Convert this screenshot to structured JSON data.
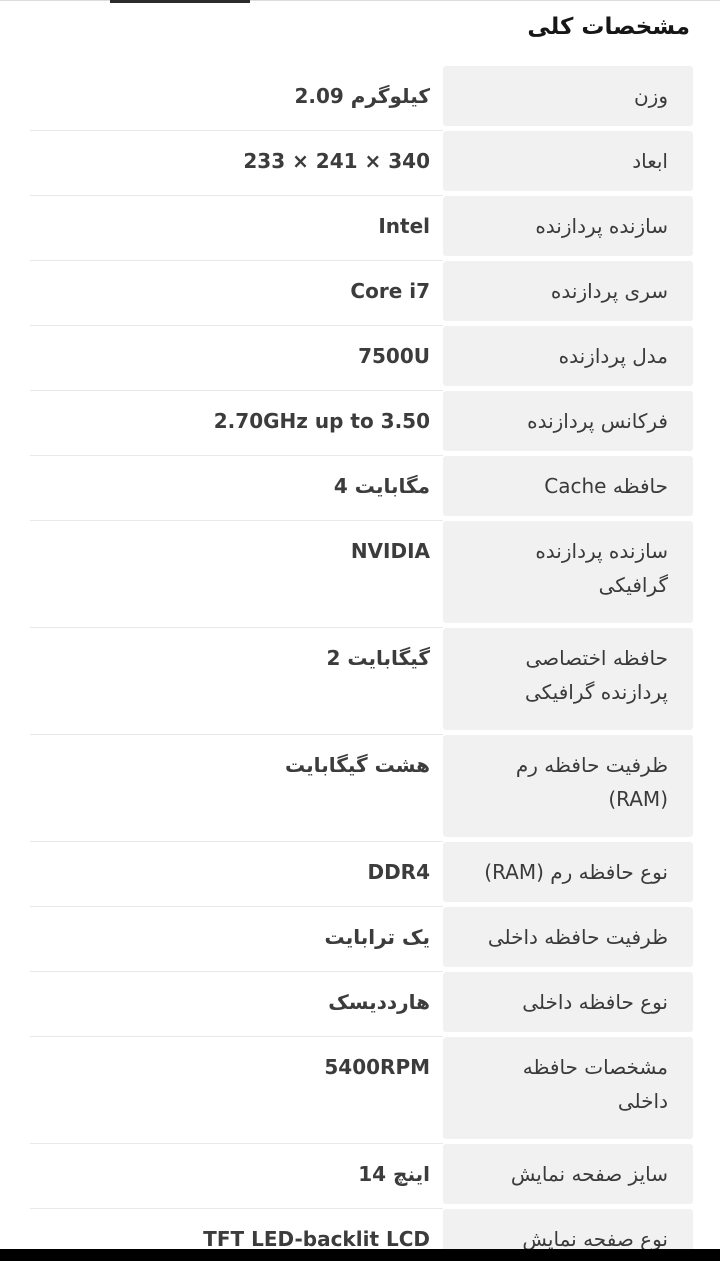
{
  "section": {
    "title": "مشخصات کلی"
  },
  "spec_table": {
    "rows": [
      {
        "label": "وزن",
        "value": "2.09 کیلوگرم",
        "lines": 1
      },
      {
        "label": "ابعاد",
        "value": "233 × 241 × 340",
        "lines": 1
      },
      {
        "label": "سازنده پردازنده",
        "value": "Intel",
        "lines": 1
      },
      {
        "label": "سری پردازنده",
        "value": "Core i7",
        "lines": 1
      },
      {
        "label": "مدل پردازنده",
        "value": "7500U",
        "lines": 1
      },
      {
        "label": "فرکانس پردازنده",
        "value": "2.70GHz up to 3.50",
        "lines": 1
      },
      {
        "label": "حافظه Cache",
        "value": "4 مگابایت",
        "lines": 1
      },
      {
        "label": "سازنده پردازنده\nگرافیکی",
        "value": "NVIDIA",
        "lines": 2
      },
      {
        "label": "حافظه اختصاصی\nپردازنده گرافیکی",
        "value": "2 گیگابایت",
        "lines": 2
      },
      {
        "label": "ظرفیت حافظه رم\n(RAM)",
        "value": "هشت گیگابایت",
        "lines": 2
      },
      {
        "label": "نوع حافظه رم (RAM)",
        "value": "DDR4",
        "lines": 1
      },
      {
        "label": "ظرفیت حافظه داخلی",
        "value": "یک ترابایت",
        "lines": 1
      },
      {
        "label": "نوع حافظه داخلی",
        "value": "هارددیسک",
        "lines": 1
      },
      {
        "label": "مشخصات حافظه\nداخلی",
        "value": "5400RPM",
        "lines": 2
      },
      {
        "label": "سایز صفحه نمایش",
        "value": "14 اینچ",
        "lines": 1
      },
      {
        "label": "نوع صفحه نمایش",
        "value": "TFT LED-backlit LCD",
        "lines": 1
      }
    ]
  },
  "colors": {
    "label_bg": "#f1f1f1",
    "separator": "#e8e8e8",
    "label_color": "#3a3a3a",
    "value_color": "#3c3c3c",
    "title_color": "#161616",
    "bottom_bar": "#000000"
  }
}
